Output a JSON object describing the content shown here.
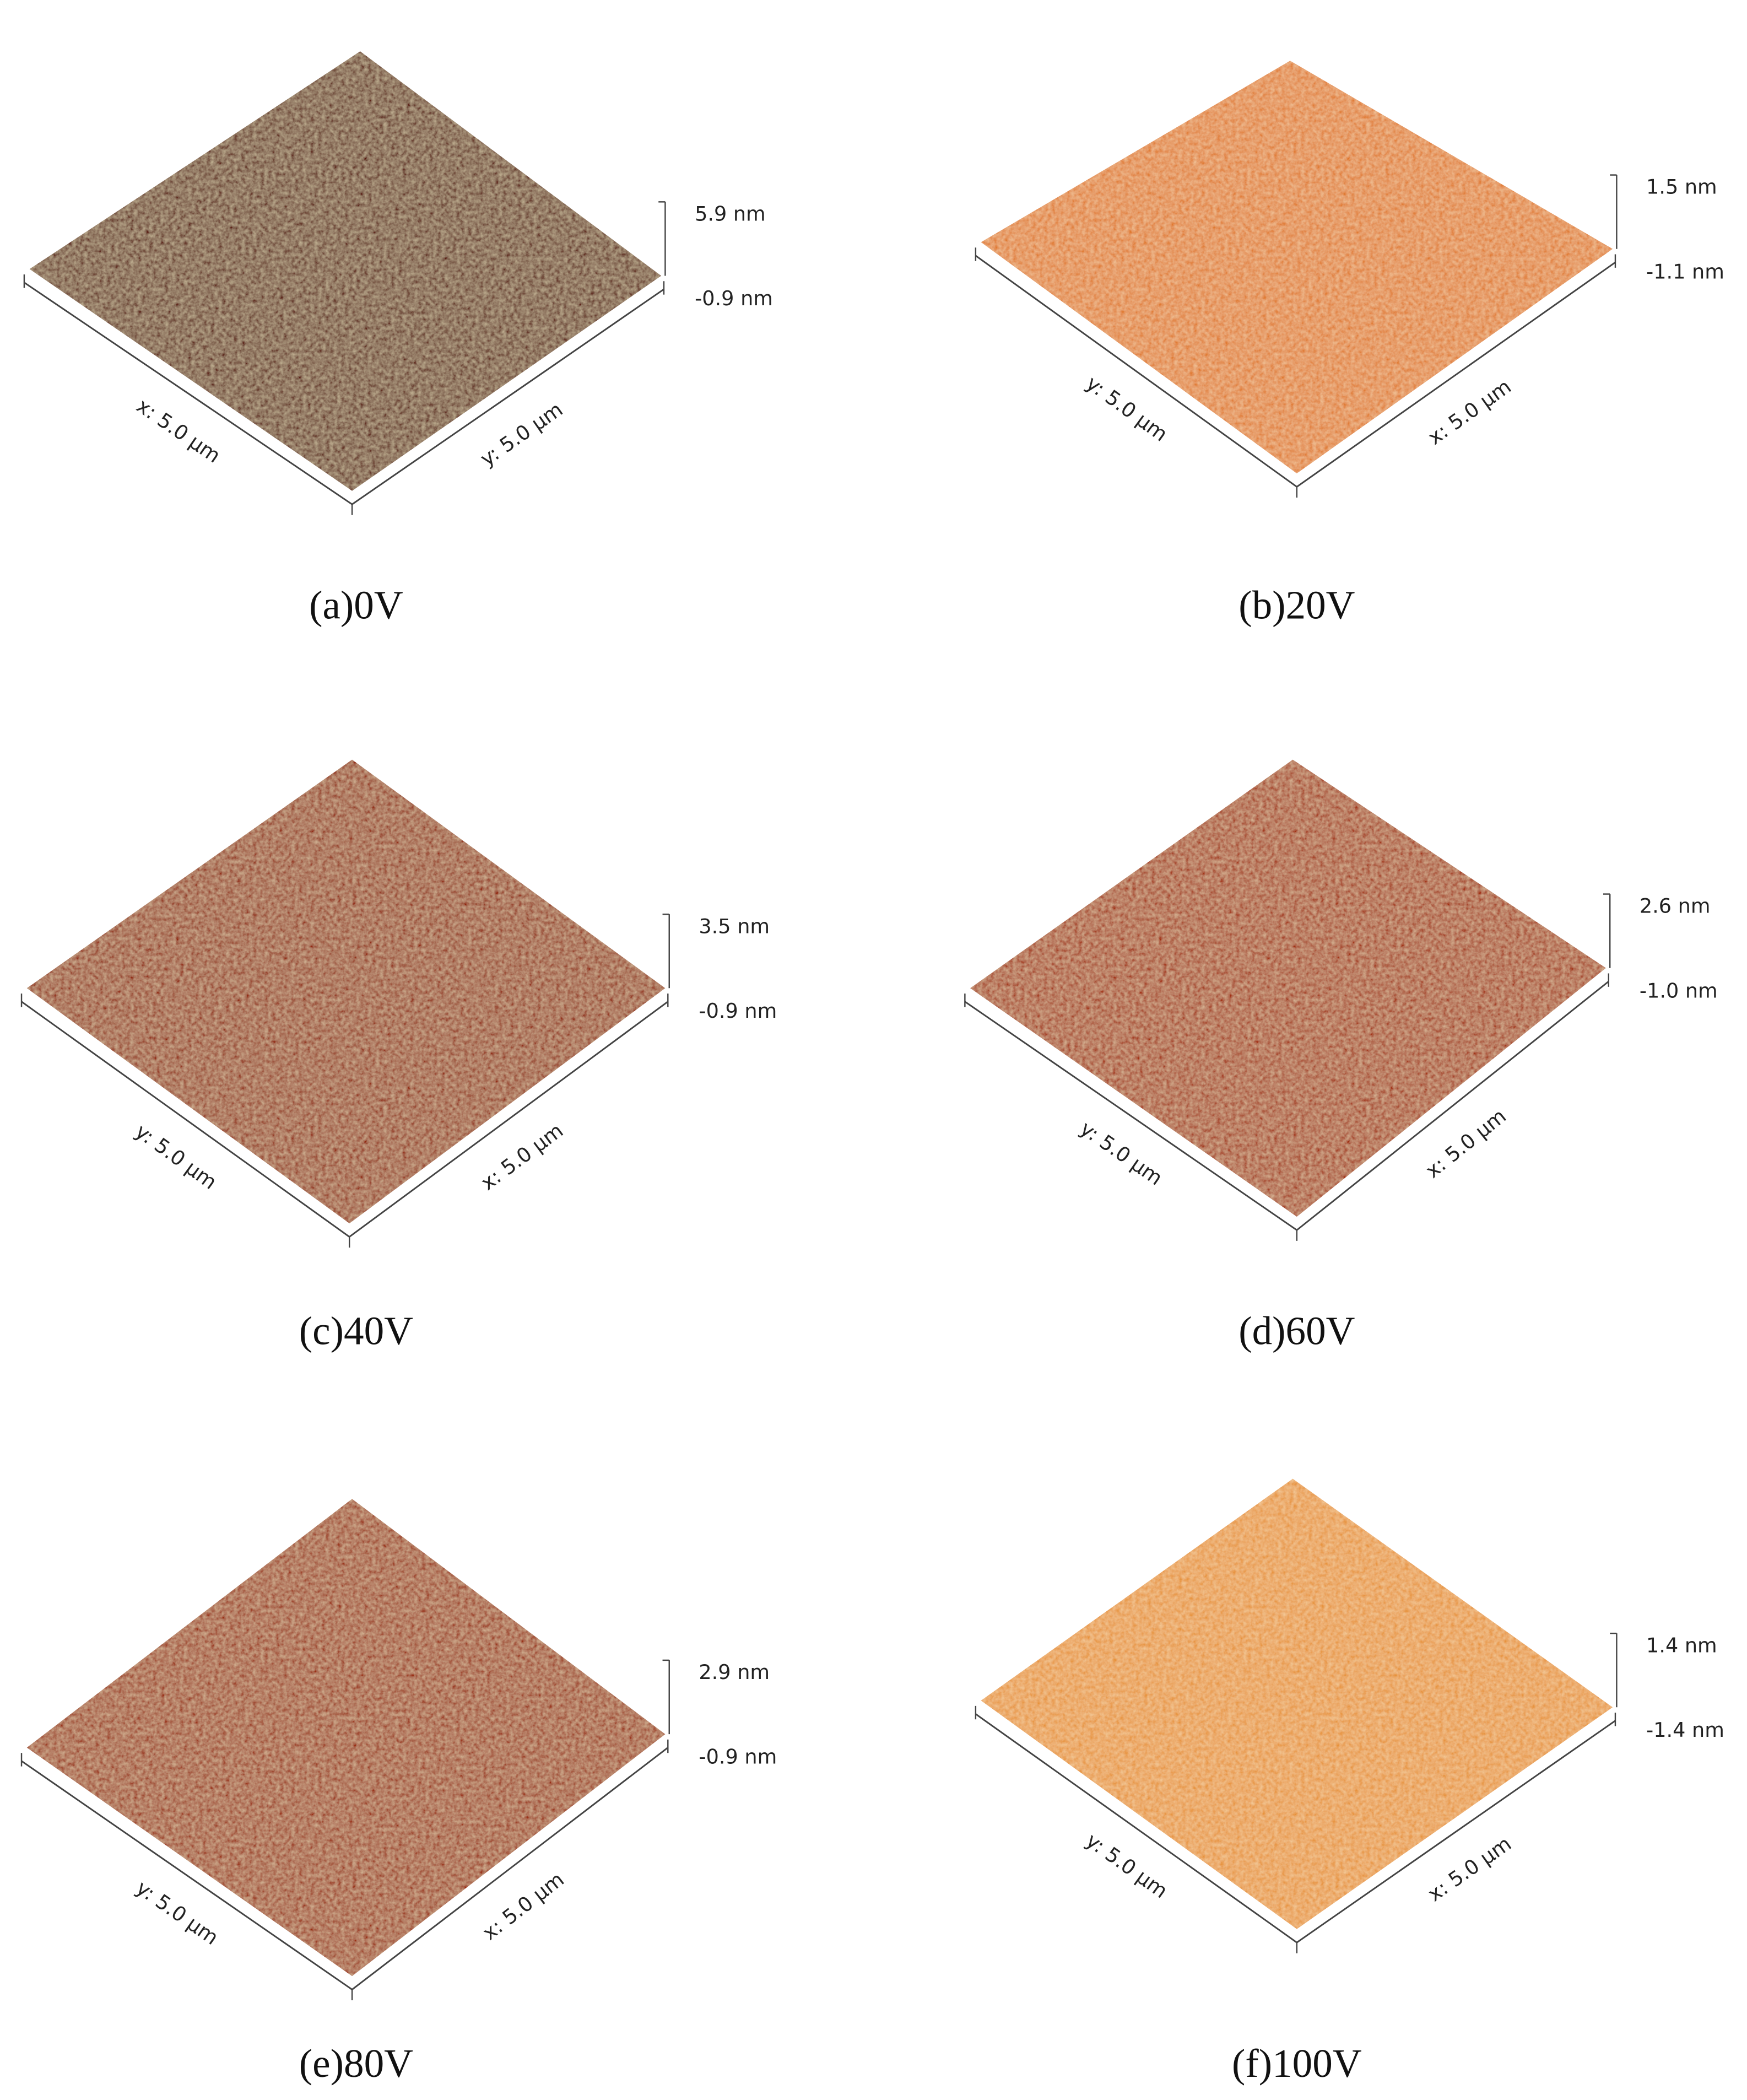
{
  "panels": [
    {
      "caption": "(a)0V",
      "left_axis_label": "x: 5.0 µm",
      "right_axis_label": "y: 5.0 µm",
      "z_max_label": "5.9 nm",
      "z_min_label": "-0.9 nm"
    },
    {
      "caption": "(b)20V",
      "left_axis_label": "y: 5.0 µm",
      "right_axis_label": "x: 5.0 µm",
      "z_max_label": "1.5 nm",
      "z_min_label": "-1.1 nm"
    },
    {
      "caption": "(c)40V",
      "left_axis_label": "y: 5.0 µm",
      "right_axis_label": "x: 5.0 µm",
      "z_max_label": "3.5 nm",
      "z_min_label": "-0.9 nm"
    },
    {
      "caption": "(d)60V",
      "left_axis_label": "y: 5.0 µm",
      "right_axis_label": "x: 5.0 µm",
      "z_max_label": "2.6 nm",
      "z_min_label": "-1.0 nm"
    },
    {
      "caption": "(e)80V",
      "left_axis_label": "y: 5.0 µm",
      "right_axis_label": "x: 5.0 µm",
      "z_max_label": "2.9 nm",
      "z_min_label": "-0.9 nm"
    },
    {
      "caption": "(f)100V",
      "left_axis_label": "y: 5.0 µm",
      "right_axis_label": "x: 5.0 µm",
      "z_max_label": "1.4 nm",
      "z_min_label": "-1.4 nm"
    }
  ]
}
